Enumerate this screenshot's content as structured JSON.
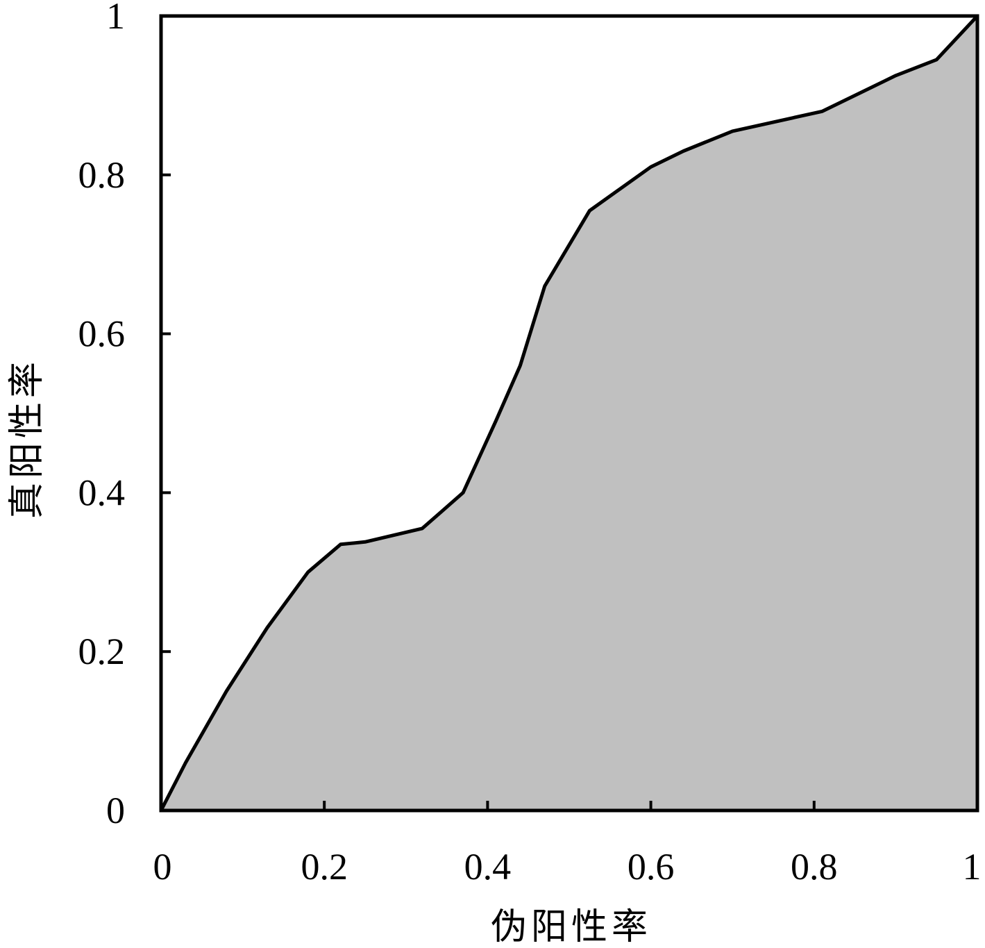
{
  "chart_data": {
    "type": "area",
    "title": "",
    "xlabel": "伪阳性率",
    "ylabel": "真阳性率",
    "xlim": [
      0,
      1
    ],
    "ylim": [
      0,
      1
    ],
    "x_ticks": [
      0,
      0.2,
      0.4,
      0.6,
      0.8,
      1
    ],
    "y_ticks": [
      0,
      0.2,
      0.4,
      0.6,
      0.8,
      1
    ],
    "x_tick_labels": [
      "0",
      "0.2",
      "0.4",
      "0.6",
      "0.8",
      "1"
    ],
    "y_tick_labels": [
      "0",
      "0.2",
      "0.4",
      "0.6",
      "0.8",
      "1"
    ],
    "grid": false,
    "fill_color": "#c0c0c0",
    "line_color": "#000000",
    "x": [
      0,
      0.03,
      0.08,
      0.13,
      0.18,
      0.22,
      0.25,
      0.32,
      0.37,
      0.41,
      0.44,
      0.47,
      0.525,
      0.6,
      0.64,
      0.7,
      0.81,
      0.9,
      0.95,
      1.0
    ],
    "y": [
      0,
      0.06,
      0.15,
      0.23,
      0.3,
      0.335,
      0.338,
      0.355,
      0.4,
      0.49,
      0.56,
      0.66,
      0.755,
      0.81,
      0.83,
      0.855,
      0.88,
      0.925,
      0.945,
      1.0
    ]
  }
}
